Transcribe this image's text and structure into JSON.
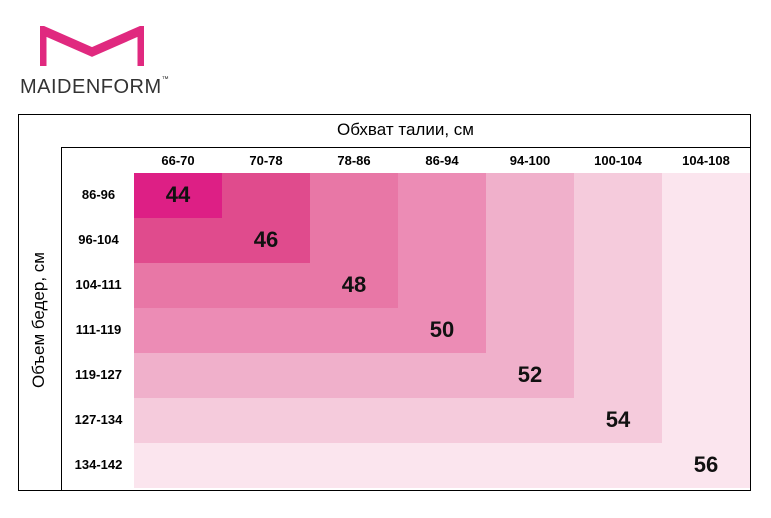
{
  "brand": {
    "name": "MAIDENFORM",
    "mark": "™",
    "logo_color": "#e0297f"
  },
  "waist": {
    "title": "Обхват талии, см",
    "ranges": [
      "66-70",
      "70-78",
      "78-86",
      "86-94",
      "94-100",
      "100-104",
      "104-108"
    ]
  },
  "hips": {
    "title": "Объем бедер, см",
    "ranges": [
      "86-96",
      "96-104",
      "104-111",
      "111-119",
      "119-127",
      "127-134",
      "134-142"
    ]
  },
  "sizes": [
    {
      "value": "44",
      "color": "#dd1f85"
    },
    {
      "value": "46",
      "color": "#e04b8d"
    },
    {
      "value": "48",
      "color": "#e877a6"
    },
    {
      "value": "50",
      "color": "#ec8cb5"
    },
    {
      "value": "52",
      "color": "#f0b0cb"
    },
    {
      "value": "54",
      "color": "#f5cbdc"
    },
    {
      "value": "56",
      "color": "#fbe5ee"
    }
  ]
}
